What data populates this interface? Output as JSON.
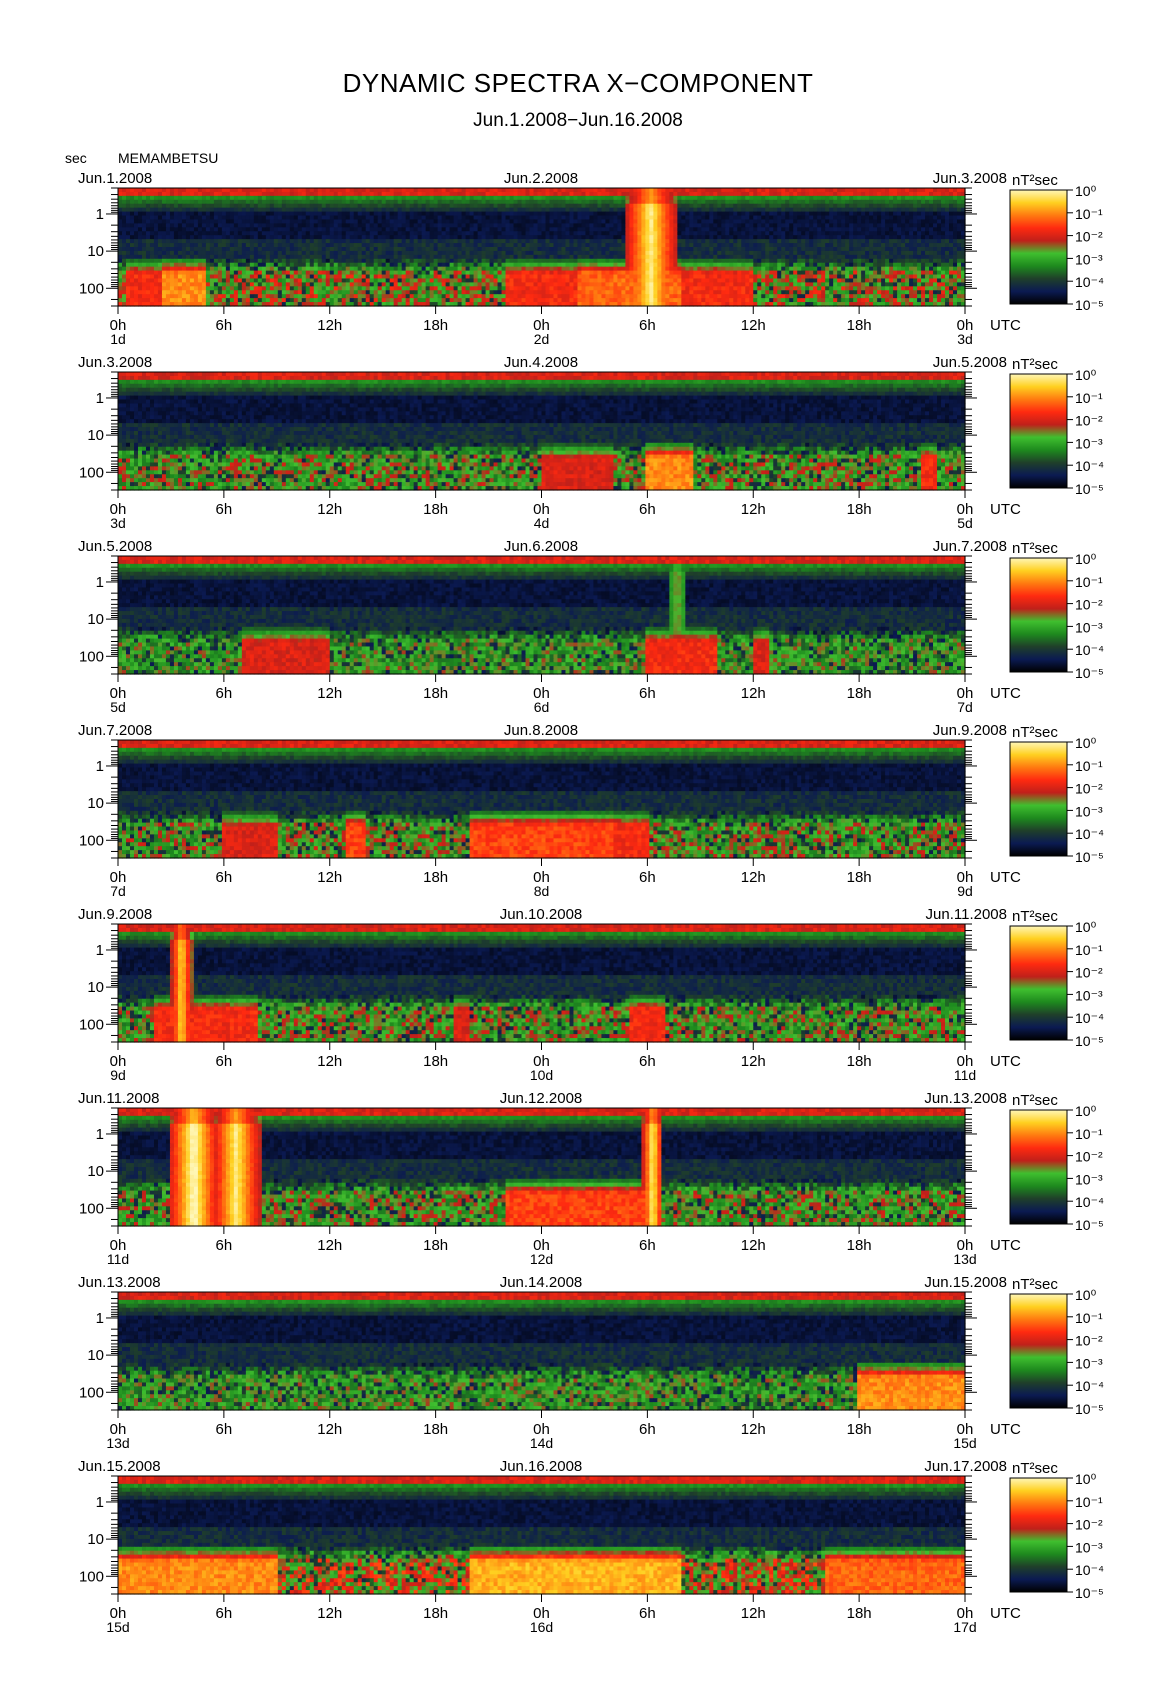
{
  "header": {
    "title": "DYNAMIC SPECTRA X−COMPONENT",
    "subtitle": "Jun.1.2008−Jun.16.2008",
    "y_unit": "sec",
    "station": "MEMAMBETSU"
  },
  "chart_data": {
    "type": "heatmap",
    "title": "DYNAMIC SPECTRA X−COMPONENT",
    "subtitle": "Jun.1.2008−Jun.16.2008",
    "ylabel": "sec",
    "xlabel": "UTC",
    "y_scale": "log",
    "y_ticks": [
      "1",
      "10",
      "100"
    ],
    "y_range": [
      0.2,
      300
    ],
    "x_ticks": [
      "0h",
      "6h",
      "12h",
      "18h",
      "0h",
      "6h",
      "12h",
      "18h",
      "0h"
    ],
    "x_unit_label": "UTC",
    "colorbar": {
      "label": "nT²sec",
      "scale": "log",
      "range": [
        1e-05,
        1
      ],
      "ticks": [
        "10⁰",
        "10⁻¹",
        "10⁻²",
        "10⁻³",
        "10⁻⁴",
        "10⁻⁵"
      ],
      "colors": [
        "#000000",
        "#0b1a52",
        "#1f3f2a",
        "#1e8a1e",
        "#3fbf2f",
        "#c0201a",
        "#ff2a10",
        "#ff7a10",
        "#ffd020",
        "#fff7b8"
      ]
    },
    "panels": [
      {
        "start_label": "Jun.1.2008",
        "mid_label": "Jun.2.2008",
        "end_label": "Jun.3.2008",
        "day_labels": [
          "1d",
          "2d",
          "3d"
        ],
        "bands": [
          [
            0,
            48,
            100,
            0.55
          ]
        ],
        "hotspots": [
          [
            0.5,
            3,
            0.6
          ],
          [
            2.5,
            5,
            0.75
          ],
          [
            22,
            26,
            0.6
          ],
          [
            26,
            32,
            0.7
          ],
          [
            32,
            36,
            0.6
          ]
        ],
        "bursts": [
          [
            30.2,
            1.5,
            0.95
          ]
        ]
      },
      {
        "start_label": "Jun.3.2008",
        "mid_label": "Jun.4.2008",
        "end_label": "Jun.5.2008",
        "day_labels": [
          "3d",
          "4d",
          "5d"
        ],
        "bands": [
          [
            0,
            48,
            100,
            0.5
          ]
        ],
        "hotspots": [
          [
            24,
            28,
            0.55
          ],
          [
            30,
            32.5,
            0.75
          ],
          [
            45.5,
            46.5,
            0.6
          ]
        ],
        "bursts": []
      },
      {
        "start_label": "Jun.5.2008",
        "mid_label": "Jun.6.2008",
        "end_label": "Jun.7.2008",
        "day_labels": [
          "5d",
          "6d",
          "7d"
        ],
        "bands": [
          [
            0,
            48,
            100,
            0.45
          ]
        ],
        "hotspots": [
          [
            7,
            12,
            0.55
          ],
          [
            30,
            34,
            0.6
          ],
          [
            36,
            37,
            0.55
          ]
        ],
        "bursts": [
          [
            31.7,
            0.5,
            0.5
          ]
        ]
      },
      {
        "start_label": "Jun.7.2008",
        "mid_label": "Jun.8.2008",
        "end_label": "Jun.9.2008",
        "day_labels": [
          "7d",
          "8d",
          "9d"
        ],
        "bands": [
          [
            0,
            48,
            100,
            0.5
          ]
        ],
        "hotspots": [
          [
            6,
            9,
            0.55
          ],
          [
            13,
            14,
            0.65
          ],
          [
            20,
            28,
            0.65
          ],
          [
            28,
            30,
            0.6
          ]
        ],
        "bursts": []
      },
      {
        "start_label": "Jun.9.2008",
        "mid_label": "Jun.10.2008",
        "end_label": "Jun.11.2008",
        "day_labels": [
          "9d",
          "10d",
          "11d"
        ],
        "bands": [
          [
            0,
            48,
            100,
            0.5
          ]
        ],
        "hotspots": [
          [
            2,
            8,
            0.6
          ],
          [
            19,
            20,
            0.55
          ],
          [
            29,
            31,
            0.6
          ]
        ],
        "bursts": [
          [
            3.6,
            0.6,
            0.9
          ]
        ]
      },
      {
        "start_label": "Jun.11.2008",
        "mid_label": "Jun.12.2008",
        "end_label": "Jun.13.2008",
        "day_labels": [
          "11d",
          "12d",
          "13d"
        ],
        "bands": [
          [
            0,
            48,
            100,
            0.5
          ]
        ],
        "hotspots": [
          [
            22,
            30,
            0.65
          ]
        ],
        "bursts": [
          [
            4.3,
            1.4,
            1.0
          ],
          [
            6.7,
            1.4,
            0.95
          ],
          [
            30.3,
            0.6,
            0.95
          ]
        ]
      },
      {
        "start_label": "Jun.13.2008",
        "mid_label": "Jun.14.2008",
        "end_label": "Jun.15.2008",
        "day_labels": [
          "13d",
          "14d",
          "15d"
        ],
        "bands": [
          [
            0,
            48,
            100,
            0.45
          ]
        ],
        "hotspots": [
          [
            42,
            48,
            0.75
          ]
        ],
        "bursts": []
      },
      {
        "start_label": "Jun.15.2008",
        "mid_label": "Jun.16.2008",
        "end_label": "Jun.17.2008",
        "day_labels": [
          "15d",
          "16d",
          "17d"
        ],
        "bands": [
          [
            0,
            48,
            100,
            0.6
          ]
        ],
        "hotspots": [
          [
            0,
            9,
            0.75
          ],
          [
            20,
            32,
            0.8
          ],
          [
            40,
            48,
            0.7
          ]
        ],
        "bursts": []
      }
    ]
  }
}
